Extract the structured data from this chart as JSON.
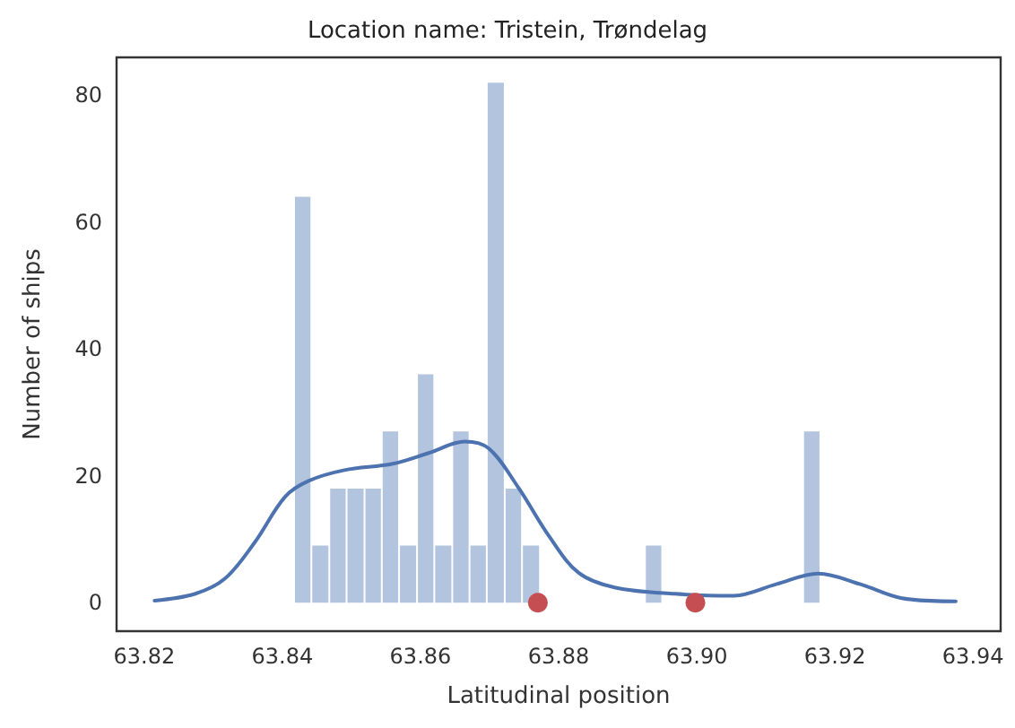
{
  "chart_data": {
    "type": "histogram",
    "title": "Location name: Tristein, Trøndelag",
    "xlabel": "Latitudinal position",
    "ylabel": "Number of ships",
    "bins": [
      63.8417,
      63.8442,
      63.8468,
      63.8493,
      63.8519,
      63.8544,
      63.8569,
      63.8595,
      63.862,
      63.8646,
      63.8671,
      63.8696,
      63.8722,
      63.8747,
      63.8773,
      63.8925,
      63.895,
      63.9154,
      63.9179
    ],
    "values": [
      64,
      9,
      18,
      18,
      18,
      27,
      9,
      36,
      9,
      27,
      9,
      82,
      18,
      9,
      0,
      9,
      0,
      27
    ],
    "color": "#b3c4df",
    "series": [
      {
        "type": "line",
        "color": "#4c72b0",
        "x": [
          63.8215,
          63.8274,
          63.8317,
          63.836,
          63.8404,
          63.8438,
          63.849,
          63.856,
          63.8612,
          63.8664,
          63.8699,
          63.8742,
          63.8786,
          63.8829,
          63.8881,
          63.8968,
          63.9054,
          63.9115,
          63.9176,
          63.9237,
          63.9297,
          63.9375
        ],
        "values": [
          0.3,
          1.4,
          3.8,
          9.5,
          16.7,
          19.2,
          20.9,
          21.9,
          23.6,
          25.4,
          24.3,
          18.1,
          10.5,
          4.7,
          2.4,
          1.4,
          1.1,
          2.9,
          4.6,
          2.9,
          0.7,
          0.2
        ]
      },
      {
        "type": "scatter",
        "color": "#c44e52",
        "x": [
          63.877,
          63.8998
        ],
        "values": [
          0,
          0
        ]
      }
    ],
    "xlim": [
      63.816,
      63.944
    ],
    "xticks": [
      63.82,
      63.84,
      63.86,
      63.88,
      {
        "value": 63.9,
        "label": "63.90"
      },
      63.92,
      63.94
    ],
    "ylim": [
      -4.5,
      86
    ],
    "yticks": [
      0,
      20,
      40,
      60,
      80
    ]
  }
}
